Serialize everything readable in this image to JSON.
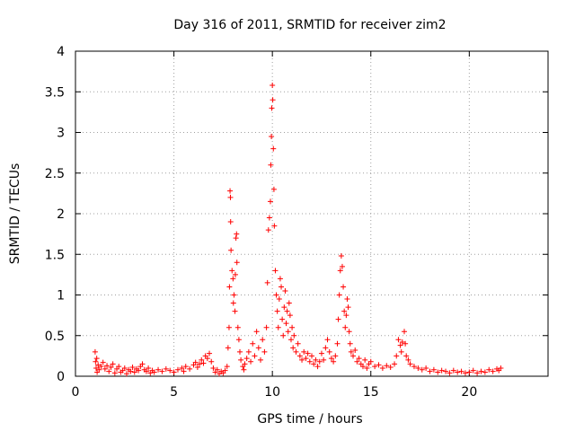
{
  "chart_data": {
    "type": "scatter",
    "title": "Day 316 of 2011, SRMTID for receiver zim2",
    "xlabel": "GPS time / hours",
    "ylabel": "SRMTID / TECUs",
    "xlim": [
      0,
      24
    ],
    "ylim": [
      0,
      4
    ],
    "xticks": [
      0,
      5,
      10,
      15,
      20
    ],
    "yticks": [
      0,
      0.5,
      1,
      1.5,
      2,
      2.5,
      3,
      3.5,
      4
    ],
    "xtick_labels": [
      "0",
      "5",
      "10",
      "15",
      "20"
    ],
    "ytick_labels": [
      "0",
      "0.5",
      "1",
      "1.5",
      "2",
      "2.5",
      "3",
      "3.5",
      "4"
    ],
    "grid": true,
    "marker": "+",
    "color": "#ff0000",
    "series": [
      {
        "name": "SRMTID",
        "points": [
          [
            1.0,
            0.3
          ],
          [
            1.02,
            0.18
          ],
          [
            1.05,
            0.1
          ],
          [
            1.08,
            0.22
          ],
          [
            1.1,
            0.05
          ],
          [
            1.15,
            0.14
          ],
          [
            1.2,
            0.08
          ],
          [
            1.3,
            0.12
          ],
          [
            1.4,
            0.17
          ],
          [
            1.5,
            0.09
          ],
          [
            1.6,
            0.13
          ],
          [
            1.7,
            0.06
          ],
          [
            1.8,
            0.11
          ],
          [
            1.9,
            0.15
          ],
          [
            2.0,
            0.04
          ],
          [
            2.1,
            0.09
          ],
          [
            2.2,
            0.12
          ],
          [
            2.3,
            0.05
          ],
          [
            2.4,
            0.07
          ],
          [
            2.5,
            0.1
          ],
          [
            2.6,
            0.03
          ],
          [
            2.7,
            0.08
          ],
          [
            2.8,
            0.06
          ],
          [
            2.9,
            0.11
          ],
          [
            3.0,
            0.05
          ],
          [
            3.1,
            0.09
          ],
          [
            3.2,
            0.07
          ],
          [
            3.3,
            0.12
          ],
          [
            3.4,
            0.15
          ],
          [
            3.5,
            0.08
          ],
          [
            3.6,
            0.06
          ],
          [
            3.7,
            0.1
          ],
          [
            3.8,
            0.04
          ],
          [
            3.9,
            0.07
          ],
          [
            4.0,
            0.05
          ],
          [
            4.2,
            0.08
          ],
          [
            4.4,
            0.06
          ],
          [
            4.6,
            0.09
          ],
          [
            4.8,
            0.07
          ],
          [
            5.0,
            0.05
          ],
          [
            5.2,
            0.08
          ],
          [
            5.4,
            0.1
          ],
          [
            5.5,
            0.06
          ],
          [
            5.6,
            0.12
          ],
          [
            5.8,
            0.09
          ],
          [
            6.0,
            0.14
          ],
          [
            6.1,
            0.17
          ],
          [
            6.2,
            0.11
          ],
          [
            6.3,
            0.15
          ],
          [
            6.4,
            0.2
          ],
          [
            6.5,
            0.16
          ],
          [
            6.6,
            0.25
          ],
          [
            6.7,
            0.22
          ],
          [
            6.8,
            0.28
          ],
          [
            6.9,
            0.18
          ],
          [
            7.0,
            0.1
          ],
          [
            7.1,
            0.05
          ],
          [
            7.2,
            0.08
          ],
          [
            7.3,
            0.03
          ],
          [
            7.4,
            0.06
          ],
          [
            7.5,
            0.04
          ],
          [
            7.6,
            0.07
          ],
          [
            7.7,
            0.12
          ],
          [
            7.75,
            0.35
          ],
          [
            7.8,
            0.6
          ],
          [
            7.82,
            1.1
          ],
          [
            7.85,
            2.28
          ],
          [
            7.87,
            2.2
          ],
          [
            7.88,
            1.9
          ],
          [
            7.9,
            1.55
          ],
          [
            7.95,
            1.3
          ],
          [
            8.0,
            1.2
          ],
          [
            8.02,
            0.9
          ],
          [
            8.05,
            1.0
          ],
          [
            8.1,
            0.8
          ],
          [
            8.12,
            1.25
          ],
          [
            8.15,
            1.7
          ],
          [
            8.18,
            1.75
          ],
          [
            8.2,
            1.4
          ],
          [
            8.25,
            0.6
          ],
          [
            8.3,
            0.45
          ],
          [
            8.35,
            0.3
          ],
          [
            8.4,
            0.2
          ],
          [
            8.5,
            0.12
          ],
          [
            8.55,
            0.08
          ],
          [
            8.6,
            0.15
          ],
          [
            8.7,
            0.22
          ],
          [
            8.8,
            0.3
          ],
          [
            8.9,
            0.18
          ],
          [
            9.0,
            0.4
          ],
          [
            9.1,
            0.25
          ],
          [
            9.2,
            0.55
          ],
          [
            9.3,
            0.35
          ],
          [
            9.4,
            0.2
          ],
          [
            9.5,
            0.45
          ],
          [
            9.6,
            0.3
          ],
          [
            9.7,
            0.6
          ],
          [
            9.75,
            1.15
          ],
          [
            9.8,
            1.8
          ],
          [
            9.85,
            1.95
          ],
          [
            9.9,
            2.15
          ],
          [
            9.92,
            2.6
          ],
          [
            9.95,
            2.95
          ],
          [
            9.97,
            3.3
          ],
          [
            10.0,
            3.58
          ],
          [
            10.02,
            3.4
          ],
          [
            10.05,
            2.8
          ],
          [
            10.08,
            2.3
          ],
          [
            10.1,
            1.85
          ],
          [
            10.15,
            1.3
          ],
          [
            10.2,
            1.0
          ],
          [
            10.25,
            0.8
          ],
          [
            10.3,
            0.6
          ],
          [
            10.35,
            0.95
          ],
          [
            10.4,
            1.2
          ],
          [
            10.45,
            1.1
          ],
          [
            10.5,
            0.7
          ],
          [
            10.55,
            0.5
          ],
          [
            10.6,
            0.85
          ],
          [
            10.65,
            1.05
          ],
          [
            10.7,
            0.65
          ],
          [
            10.75,
            0.8
          ],
          [
            10.8,
            0.55
          ],
          [
            10.85,
            0.9
          ],
          [
            10.9,
            0.75
          ],
          [
            10.95,
            0.45
          ],
          [
            11.0,
            0.6
          ],
          [
            11.05,
            0.35
          ],
          [
            11.1,
            0.5
          ],
          [
            11.2,
            0.3
          ],
          [
            11.3,
            0.4
          ],
          [
            11.4,
            0.25
          ],
          [
            11.5,
            0.2
          ],
          [
            11.6,
            0.3
          ],
          [
            11.7,
            0.22
          ],
          [
            11.8,
            0.28
          ],
          [
            11.9,
            0.18
          ],
          [
            12.0,
            0.25
          ],
          [
            12.1,
            0.15
          ],
          [
            12.2,
            0.2
          ],
          [
            12.3,
            0.12
          ],
          [
            12.4,
            0.18
          ],
          [
            12.5,
            0.28
          ],
          [
            12.6,
            0.2
          ],
          [
            12.7,
            0.35
          ],
          [
            12.8,
            0.45
          ],
          [
            12.9,
            0.3
          ],
          [
            13.0,
            0.22
          ],
          [
            13.1,
            0.18
          ],
          [
            13.2,
            0.25
          ],
          [
            13.3,
            0.4
          ],
          [
            13.35,
            0.7
          ],
          [
            13.4,
            1.0
          ],
          [
            13.45,
            1.3
          ],
          [
            13.5,
            1.48
          ],
          [
            13.55,
            1.35
          ],
          [
            13.6,
            1.1
          ],
          [
            13.65,
            0.8
          ],
          [
            13.7,
            0.6
          ],
          [
            13.75,
            0.75
          ],
          [
            13.8,
            0.95
          ],
          [
            13.85,
            0.85
          ],
          [
            13.9,
            0.55
          ],
          [
            13.95,
            0.4
          ],
          [
            14.0,
            0.3
          ],
          [
            14.1,
            0.25
          ],
          [
            14.2,
            0.32
          ],
          [
            14.3,
            0.18
          ],
          [
            14.4,
            0.22
          ],
          [
            14.5,
            0.15
          ],
          [
            14.6,
            0.12
          ],
          [
            14.7,
            0.2
          ],
          [
            14.8,
            0.1
          ],
          [
            14.9,
            0.15
          ],
          [
            15.0,
            0.18
          ],
          [
            15.2,
            0.12
          ],
          [
            15.4,
            0.14
          ],
          [
            15.6,
            0.1
          ],
          [
            15.8,
            0.13
          ],
          [
            16.0,
            0.11
          ],
          [
            16.2,
            0.15
          ],
          [
            16.3,
            0.25
          ],
          [
            16.4,
            0.45
          ],
          [
            16.5,
            0.38
          ],
          [
            16.55,
            0.3
          ],
          [
            16.6,
            0.42
          ],
          [
            16.7,
            0.55
          ],
          [
            16.75,
            0.4
          ],
          [
            16.8,
            0.25
          ],
          [
            16.9,
            0.2
          ],
          [
            17.0,
            0.15
          ],
          [
            17.2,
            0.12
          ],
          [
            17.4,
            0.1
          ],
          [
            17.6,
            0.08
          ],
          [
            17.8,
            0.1
          ],
          [
            18.0,
            0.06
          ],
          [
            18.2,
            0.08
          ],
          [
            18.4,
            0.05
          ],
          [
            18.6,
            0.07
          ],
          [
            18.8,
            0.06
          ],
          [
            19.0,
            0.04
          ],
          [
            19.2,
            0.07
          ],
          [
            19.4,
            0.05
          ],
          [
            19.6,
            0.06
          ],
          [
            19.8,
            0.04
          ],
          [
            20.0,
            0.05
          ],
          [
            20.2,
            0.07
          ],
          [
            20.4,
            0.04
          ],
          [
            20.6,
            0.06
          ],
          [
            20.8,
            0.05
          ],
          [
            21.0,
            0.08
          ],
          [
            21.2,
            0.06
          ],
          [
            21.4,
            0.09
          ],
          [
            21.5,
            0.07
          ],
          [
            21.6,
            0.1
          ]
        ]
      }
    ]
  }
}
